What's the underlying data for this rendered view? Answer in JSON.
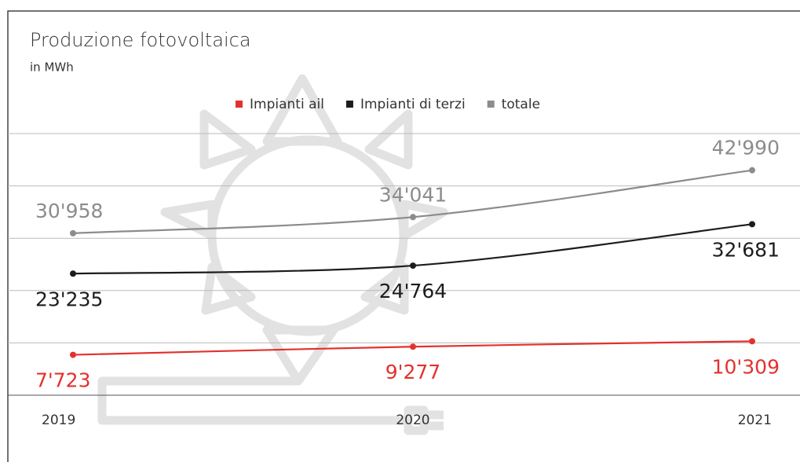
{
  "chart_data": {
    "type": "line",
    "title": "Produzione fotovoltaica",
    "subtitle": "in MWh",
    "categories": [
      "2019",
      "2020",
      "2021"
    ],
    "series": [
      {
        "name": "Impianti ail",
        "color": "#e3312d",
        "values": [
          7723,
          9277,
          10309
        ],
        "value_labels": [
          "7'723",
          "9'277",
          "10'309"
        ]
      },
      {
        "name": "Impianti di terzi",
        "color": "#1c1c1c",
        "values": [
          23235,
          24764,
          32681
        ],
        "value_labels": [
          "23'235",
          "24'764",
          "32'681"
        ]
      },
      {
        "name": "totale",
        "color": "#8c8c8c",
        "values": [
          30958,
          34041,
          42990
        ],
        "value_labels": [
          "30'958",
          "34'041",
          "42'990"
        ]
      }
    ],
    "ylim": [
      0,
      50000
    ],
    "yticks": [
      0,
      10000,
      20000,
      30000,
      40000,
      50000
    ],
    "grid": true,
    "legend": "top"
  }
}
